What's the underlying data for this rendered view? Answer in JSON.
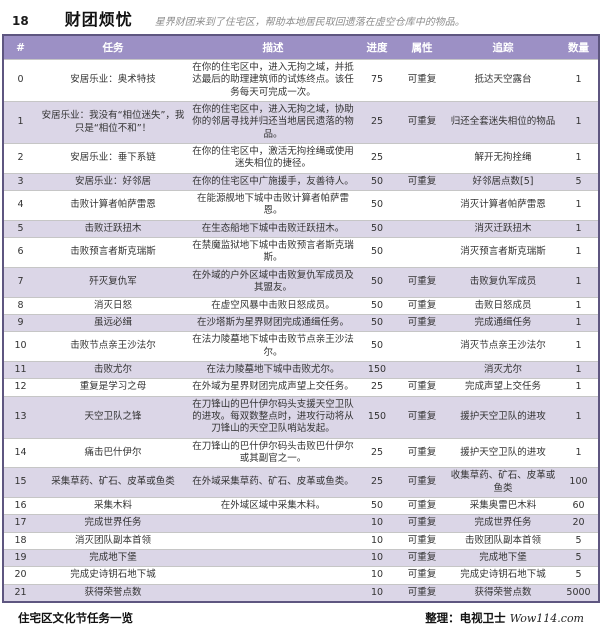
{
  "header": {
    "index": "18",
    "title": "财团烦忧",
    "subtitle": "星界财团来到了住宅区，帮助本地居民取回遗落在虚空仓库中的物品。"
  },
  "colors": {
    "header_bg": "#9c90c5",
    "row_alt_bg": "#dbd6e7",
    "table_border": "#5e5680",
    "header_text": "#ffffff",
    "subtitle_text": "#8d8d8d"
  },
  "table": {
    "columns": [
      "#",
      "任务",
      "描述",
      "进度",
      "属性",
      "追踪",
      "数量"
    ],
    "rows": [
      {
        "id": "0",
        "task": "安居乐业：奥术特技",
        "desc": "在你的住宅区中，进入无拘之域，并抵达最后的助理建筑师的试炼终点。该任务每天可完成一次。",
        "progress": "75",
        "attr": "可重复",
        "track": "抵达天空露台",
        "qty": "1"
      },
      {
        "id": "1",
        "task": "安居乐业：我没有“相位迷失”，我只是“相位不和”！",
        "desc": "在你的住宅区中，进入无拘之域，协助你的邻居寻找并归还当地居民遗落的物品。",
        "progress": "25",
        "attr": "可重复",
        "track": "归还全套迷失相位的物品",
        "qty": "1"
      },
      {
        "id": "2",
        "task": "安居乐业：垂下系链",
        "desc": "在你的住宅区中，激活无拘拴绳或使用迷失相位的捷径。",
        "progress": "25",
        "attr": "",
        "track": "解开无拘拴绳",
        "qty": "1"
      },
      {
        "id": "3",
        "task": "安居乐业：好邻居",
        "desc": "在你的住宅区中广施援手，友善待人。",
        "progress": "50",
        "attr": "可重复",
        "track": "好邻居点数[5]",
        "qty": "5"
      },
      {
        "id": "4",
        "task": "击败计算者帕萨雷恩",
        "desc": "在能源舰地下城中击败计算者帕萨雷恩。",
        "progress": "50",
        "attr": "",
        "track": "消灭计算者帕萨雷恩",
        "qty": "1"
      },
      {
        "id": "5",
        "task": "击败迁跃扭木",
        "desc": "在生态船地下城中击败迁跃扭木。",
        "progress": "50",
        "attr": "",
        "track": "消灭迁跃扭木",
        "qty": "1"
      },
      {
        "id": "6",
        "task": "击败预言者斯克瑞斯",
        "desc": "在禁魔监狱地下城中击败预言者斯克瑞斯。",
        "progress": "50",
        "attr": "",
        "track": "消灭预言者斯克瑞斯",
        "qty": "1"
      },
      {
        "id": "7",
        "task": "歼灭复仇军",
        "desc": "在外域的户外区域中击败复仇军成员及其盟友。",
        "progress": "50",
        "attr": "可重复",
        "track": "击败复仇军成员",
        "qty": "1"
      },
      {
        "id": "8",
        "task": "消灭日怒",
        "desc": "在虚空风暴中击败日怒成员。",
        "progress": "50",
        "attr": "可重复",
        "track": "击败日怒成员",
        "qty": "1"
      },
      {
        "id": "9",
        "task": "虽远必缉",
        "desc": "在沙塔斯为星界财团完成通缉任务。",
        "progress": "50",
        "attr": "可重复",
        "track": "完成通缉任务",
        "qty": "1"
      },
      {
        "id": "10",
        "task": "击败节点亲王沙法尔",
        "desc": "在法力陵墓地下城中击败节点亲王沙法尔。",
        "progress": "50",
        "attr": "",
        "track": "消灭节点亲王沙法尔",
        "qty": "1"
      },
      {
        "id": "11",
        "task": "击败尤尔",
        "desc": "在法力陵墓地下城中击败尤尔。",
        "progress": "150",
        "attr": "",
        "track": "消灭尤尔",
        "qty": "1"
      },
      {
        "id": "12",
        "task": "重复是学习之母",
        "desc": "在外域为星界财团完成声望上交任务。",
        "progress": "25",
        "attr": "可重复",
        "track": "完成声望上交任务",
        "qty": "1"
      },
      {
        "id": "13",
        "task": "天空卫队之锋",
        "desc": "在刀锋山的巴什伊尔码头支援天空卫队的进攻。每双数整点时，进攻行动将从刀锋山的天空卫队哨站发起。",
        "progress": "150",
        "attr": "可重复",
        "track": "援护天空卫队的进攻",
        "qty": "1"
      },
      {
        "id": "14",
        "task": "痛击巴什伊尔",
        "desc": "在刀锋山的巴什伊尔码头击败巴什伊尔或其副官之一。",
        "progress": "25",
        "attr": "可重复",
        "track": "援护天空卫队的进攻",
        "qty": "1"
      },
      {
        "id": "15",
        "task": "采集草药、矿石、皮革或鱼类",
        "desc": "在外域采集草药、矿石、皮革或鱼类。",
        "progress": "25",
        "attr": "可重复",
        "track": "收集草药、矿石、皮革或鱼类",
        "qty": "100"
      },
      {
        "id": "16",
        "task": "采集木料",
        "desc": "在外域区域中采集木料。",
        "progress": "50",
        "attr": "可重复",
        "track": "采集奥雷巴木料",
        "qty": "60"
      },
      {
        "id": "17",
        "task": "完成世界任务",
        "desc": "",
        "progress": "10",
        "attr": "可重复",
        "track": "完成世界任务",
        "qty": "20"
      },
      {
        "id": "18",
        "task": "消灭团队副本首领",
        "desc": "",
        "progress": "10",
        "attr": "可重复",
        "track": "击败团队副本首领",
        "qty": "5"
      },
      {
        "id": "19",
        "task": "完成地下堡",
        "desc": "",
        "progress": "10",
        "attr": "可重复",
        "track": "完成地下堡",
        "qty": "5"
      },
      {
        "id": "20",
        "task": "完成史诗钥石地下城",
        "desc": "",
        "progress": "10",
        "attr": "可重复",
        "track": "完成史诗钥石地下城",
        "qty": "5"
      },
      {
        "id": "21",
        "task": "获得荣誉点数",
        "desc": "",
        "progress": "10",
        "attr": "可重复",
        "track": "获得荣誉点数",
        "qty": "5000"
      }
    ]
  },
  "footer": {
    "caption": "住宅区文化节任务一览",
    "credit_label": "整理：电视卫士",
    "site": "Wow114.com"
  }
}
